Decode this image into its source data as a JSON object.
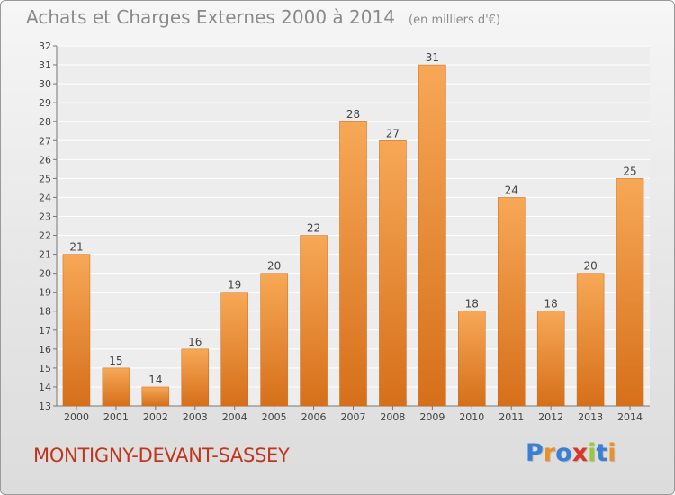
{
  "title": "Achats et Charges Externes 2000 à 2014",
  "unit_label": "(en milliers d'€)",
  "commune": "MONTIGNY-DEVANT-SASSEY",
  "logo": {
    "text": "Proxiti",
    "colors": [
      "#3b7fd4",
      "#e8912b",
      "#3b7fd4",
      "#d8362a",
      "#9ac73f",
      "#3b7fd4",
      "#e8912b"
    ]
  },
  "colors": {
    "bar_top": "#f7a856",
    "bar_bottom": "#d66f1a",
    "title": "#8a8a8a",
    "commune": "#c0351e"
  },
  "chart_data": {
    "type": "bar",
    "title": "Achats et Charges Externes 2000 à 2014",
    "categories": [
      "2000",
      "2001",
      "2002",
      "2003",
      "2004",
      "2005",
      "2006",
      "2007",
      "2008",
      "2009",
      "2010",
      "2011",
      "2012",
      "2013",
      "2014"
    ],
    "values": [
      21,
      15,
      14,
      16,
      19,
      20,
      22,
      28,
      27,
      31,
      18,
      24,
      18,
      20,
      25
    ],
    "ylim": [
      13,
      32
    ],
    "yticks": [
      13,
      14,
      15,
      16,
      17,
      18,
      19,
      20,
      21,
      22,
      23,
      24,
      25,
      26,
      27,
      28,
      29,
      30,
      31,
      32
    ],
    "grid": true,
    "data_labels": true
  }
}
